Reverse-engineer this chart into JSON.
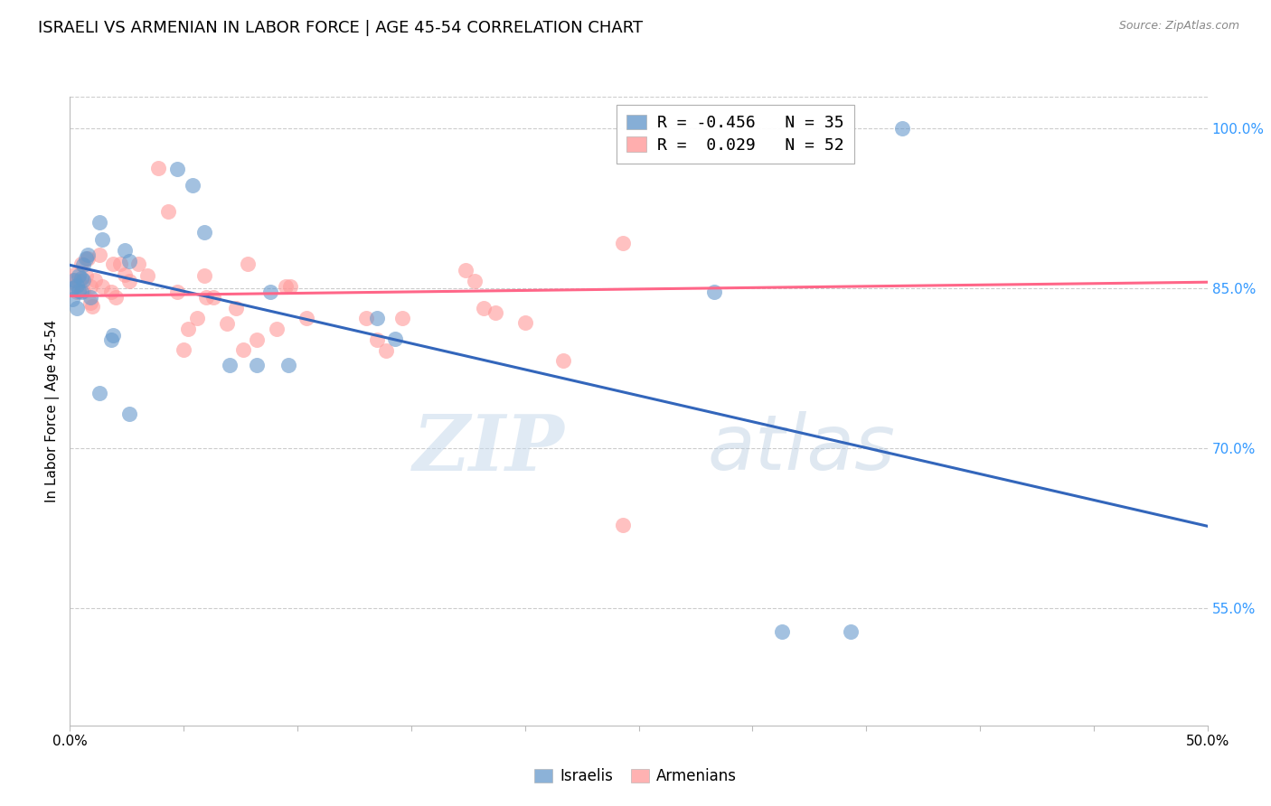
{
  "title": "ISRAELI VS ARMENIAN IN LABOR FORCE | AGE 45-54 CORRELATION CHART",
  "source": "Source: ZipAtlas.com",
  "ylabel": "In Labor Force | Age 45-54",
  "xlim": [
    0.0,
    0.5
  ],
  "ylim": [
    0.44,
    1.03
  ],
  "yticks": [
    0.55,
    0.7,
    0.85,
    1.0
  ],
  "ytick_labels": [
    "55.0%",
    "70.0%",
    "85.0%",
    "100.0%"
  ],
  "xtick_positions": [
    0.0,
    0.05,
    0.1,
    0.15,
    0.2,
    0.25,
    0.3,
    0.35,
    0.4,
    0.45,
    0.5
  ],
  "xtick_labels_show": {
    "0.0": "0.0%",
    "0.5": "50.0%"
  },
  "israeli_R": -0.456,
  "israeli_N": 35,
  "armenian_R": 0.029,
  "armenian_N": 52,
  "legend_label_israeli": "R = -0.456   N = 35",
  "legend_label_armenian": "R =  0.029   N = 52",
  "legend_label_bottom_israeli": "Israelis",
  "legend_label_bottom_armenian": "Armenians",
  "color_israeli": "#6699CC",
  "color_armenian": "#FF9999",
  "color_line_israeli": "#3366BB",
  "color_line_armenian": "#FF6688",
  "color_yticks": "#3399FF",
  "watermark_zip": "ZIP",
  "watermark_atlas": "atlas",
  "israeli_line": [
    [
      0.0,
      0.872
    ],
    [
      0.5,
      0.627
    ]
  ],
  "armenian_line": [
    [
      0.0,
      0.843
    ],
    [
      0.5,
      0.856
    ]
  ],
  "israeli_points": [
    [
      0.001,
      0.85
    ],
    [
      0.001,
      0.84
    ],
    [
      0.002,
      0.858
    ],
    [
      0.003,
      0.853
    ],
    [
      0.003,
      0.832
    ],
    [
      0.004,
      0.862
    ],
    [
      0.004,
      0.848
    ],
    [
      0.005,
      0.86
    ],
    [
      0.005,
      0.847
    ],
    [
      0.006,
      0.858
    ],
    [
      0.006,
      0.872
    ],
    [
      0.007,
      0.878
    ],
    [
      0.008,
      0.882
    ],
    [
      0.009,
      0.842
    ],
    [
      0.013,
      0.912
    ],
    [
      0.014,
      0.896
    ],
    [
      0.018,
      0.802
    ],
    [
      0.019,
      0.806
    ],
    [
      0.024,
      0.886
    ],
    [
      0.026,
      0.876
    ],
    [
      0.047,
      0.962
    ],
    [
      0.054,
      0.947
    ],
    [
      0.059,
      0.903
    ],
    [
      0.07,
      0.778
    ],
    [
      0.082,
      0.778
    ],
    [
      0.088,
      0.847
    ],
    [
      0.096,
      0.778
    ],
    [
      0.135,
      0.822
    ],
    [
      0.143,
      0.803
    ],
    [
      0.283,
      0.847
    ],
    [
      0.313,
      0.528
    ],
    [
      0.343,
      0.528
    ],
    [
      0.366,
      1.0
    ],
    [
      0.013,
      0.752
    ],
    [
      0.026,
      0.732
    ]
  ],
  "armenian_points": [
    [
      0.001,
      0.858
    ],
    [
      0.002,
      0.863
    ],
    [
      0.003,
      0.847
    ],
    [
      0.004,
      0.858
    ],
    [
      0.005,
      0.873
    ],
    [
      0.006,
      0.848
    ],
    [
      0.007,
      0.862
    ],
    [
      0.008,
      0.878
    ],
    [
      0.009,
      0.852
    ],
    [
      0.009,
      0.837
    ],
    [
      0.01,
      0.833
    ],
    [
      0.011,
      0.858
    ],
    [
      0.013,
      0.882
    ],
    [
      0.014,
      0.852
    ],
    [
      0.018,
      0.847
    ],
    [
      0.019,
      0.873
    ],
    [
      0.02,
      0.842
    ],
    [
      0.022,
      0.873
    ],
    [
      0.024,
      0.863
    ],
    [
      0.026,
      0.857
    ],
    [
      0.03,
      0.873
    ],
    [
      0.034,
      0.862
    ],
    [
      0.039,
      0.963
    ],
    [
      0.043,
      0.922
    ],
    [
      0.047,
      0.847
    ],
    [
      0.05,
      0.793
    ],
    [
      0.052,
      0.812
    ],
    [
      0.056,
      0.822
    ],
    [
      0.059,
      0.862
    ],
    [
      0.06,
      0.842
    ],
    [
      0.063,
      0.842
    ],
    [
      0.069,
      0.817
    ],
    [
      0.073,
      0.832
    ],
    [
      0.076,
      0.793
    ],
    [
      0.078,
      0.873
    ],
    [
      0.082,
      0.802
    ],
    [
      0.091,
      0.812
    ],
    [
      0.095,
      0.852
    ],
    [
      0.097,
      0.852
    ],
    [
      0.104,
      0.822
    ],
    [
      0.13,
      0.822
    ],
    [
      0.135,
      0.802
    ],
    [
      0.139,
      0.792
    ],
    [
      0.146,
      0.822
    ],
    [
      0.174,
      0.867
    ],
    [
      0.178,
      0.857
    ],
    [
      0.182,
      0.832
    ],
    [
      0.187,
      0.827
    ],
    [
      0.2,
      0.818
    ],
    [
      0.217,
      0.782
    ],
    [
      0.243,
      0.893
    ],
    [
      0.243,
      0.628
    ]
  ],
  "background_color": "#FFFFFF",
  "grid_color": "#CCCCCC",
  "title_fontsize": 13,
  "axis_label_fontsize": 11,
  "tick_fontsize": 11
}
